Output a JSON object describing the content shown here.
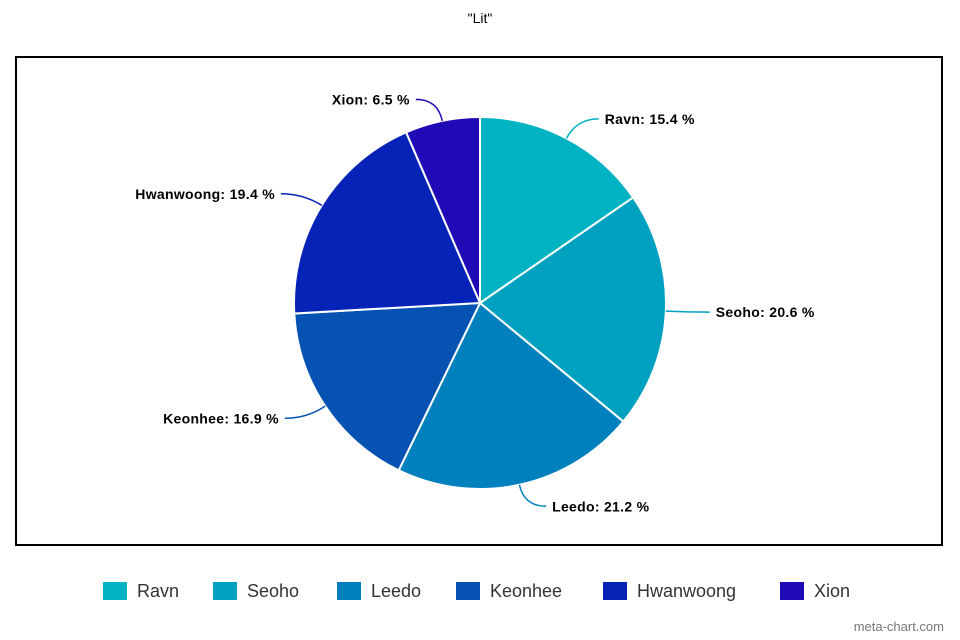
{
  "chart_data": {
    "type": "pie",
    "title": "\"Lit\"",
    "slices": [
      {
        "name": "Ravn",
        "value": 15.4,
        "label": "Ravn: 15.4 %",
        "color": "#00b3c2"
      },
      {
        "name": "Seoho",
        "value": 20.6,
        "label": "Seoho: 20.6 %",
        "color": "#00a1c0"
      },
      {
        "name": "Leedo",
        "value": 21.2,
        "label": "Leedo: 21.2 %",
        "color": "#0081bd"
      },
      {
        "name": "Keonhee",
        "value": 16.9,
        "label": "Keonhee: 16.9 %",
        "color": "#0552b3"
      },
      {
        "name": "Hwanwoong",
        "value": 19.4,
        "label": "Hwanwoong: 19.4 %",
        "color": "#0524b7"
      },
      {
        "name": "Xion",
        "value": 6.5,
        "label": "Xion: 6.5 %",
        "color": "#1f0ab5"
      }
    ],
    "legend_position": "bottom"
  },
  "watermark": "meta-chart.com"
}
